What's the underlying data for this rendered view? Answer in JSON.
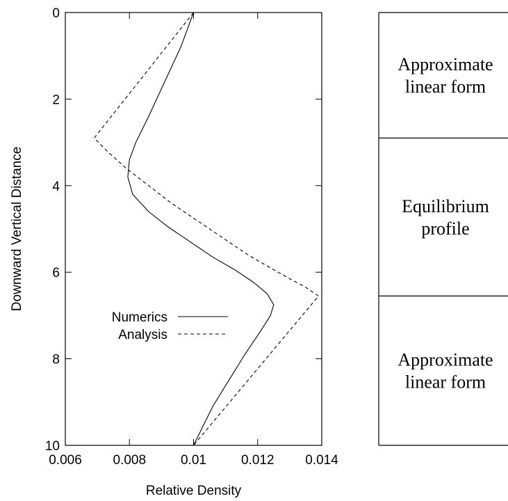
{
  "chart_data": {
    "type": "line",
    "xlabel": "Relative Density",
    "ylabel": "Downward Vertical Distance",
    "xlim": [
      0.006,
      0.014
    ],
    "ylim": [
      0,
      10
    ],
    "y_inverted": true,
    "x_ticks": [
      0.006,
      0.008,
      0.01,
      0.012,
      0.014
    ],
    "x_tick_labels": [
      "0.006",
      "0.008",
      "0.01",
      "0.012",
      "0.014"
    ],
    "y_ticks": [
      0,
      2,
      4,
      6,
      8,
      10
    ],
    "y_tick_labels": [
      "0",
      "2",
      "4",
      "6",
      "8",
      "10"
    ],
    "grid": false,
    "legend_position": "center-left",
    "series": [
      {
        "name": "Numerics",
        "style": "solid",
        "color": "#000000",
        "points": [
          [
            0.01,
            0.0
          ],
          [
            0.0096,
            0.8
          ],
          [
            0.0091,
            1.6
          ],
          [
            0.0086,
            2.4
          ],
          [
            0.0082,
            3.0
          ],
          [
            0.008,
            3.4
          ],
          [
            0.00795,
            3.8
          ],
          [
            0.0081,
            4.2
          ],
          [
            0.0086,
            4.6
          ],
          [
            0.0092,
            4.95
          ],
          [
            0.0099,
            5.3
          ],
          [
            0.0106,
            5.65
          ],
          [
            0.0113,
            5.95
          ],
          [
            0.0119,
            6.25
          ],
          [
            0.0123,
            6.5
          ],
          [
            0.0125,
            6.75
          ],
          [
            0.0124,
            7.0
          ],
          [
            0.0121,
            7.35
          ],
          [
            0.0116,
            7.9
          ],
          [
            0.0111,
            8.5
          ],
          [
            0.0106,
            9.1
          ],
          [
            0.0102,
            9.7
          ],
          [
            0.01,
            10.0
          ]
        ]
      },
      {
        "name": "Analysis",
        "style": "dashed",
        "color": "#000000",
        "points": [
          [
            0.01,
            0.0
          ],
          [
            0.0069,
            2.9
          ],
          [
            0.0073,
            3.2
          ],
          [
            0.0079,
            3.6
          ],
          [
            0.0086,
            4.0
          ],
          [
            0.0093,
            4.4
          ],
          [
            0.0101,
            4.8
          ],
          [
            0.0109,
            5.2
          ],
          [
            0.0117,
            5.6
          ],
          [
            0.0124,
            5.9
          ],
          [
            0.013,
            6.15
          ],
          [
            0.0135,
            6.35
          ],
          [
            0.0139,
            6.55
          ],
          [
            0.01,
            10.0
          ]
        ]
      }
    ],
    "regions": [
      {
        "label_lines": [
          "Approximate",
          "linear form"
        ],
        "y_start": 0,
        "y_end": 2.9
      },
      {
        "label_lines": [
          "Equilibrium",
          "profile"
        ],
        "y_start": 2.9,
        "y_end": 6.55
      },
      {
        "label_lines": [
          "Approximate",
          "linear form"
        ],
        "y_start": 6.55,
        "y_end": 10
      }
    ]
  }
}
